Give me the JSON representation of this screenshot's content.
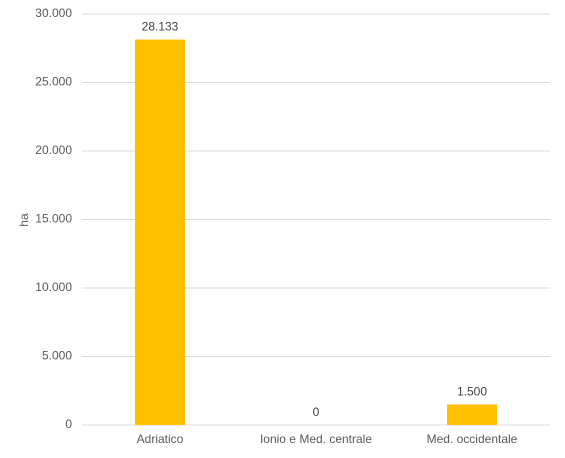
{
  "chart_data": {
    "type": "bar",
    "y_label": "ha",
    "categories": [
      "Adriatico",
      "Ionio e Med. centrale",
      "Med. occidentale"
    ],
    "values": [
      28133,
      0,
      1500
    ],
    "value_labels": [
      "28.133",
      "0",
      "1.500"
    ],
    "color": "#ffc000",
    "ylim": [
      0,
      30000
    ],
    "yticks": [
      0,
      {
        "value": 5000,
        "label": "5.000"
      },
      {
        "value": 10000,
        "label": "10.000"
      },
      {
        "value": 15000,
        "label": "15.000"
      },
      {
        "value": 20000,
        "label": "20.000"
      },
      {
        "value": 25000,
        "label": "25.000"
      },
      {
        "value": 30000,
        "label": "30.000"
      }
    ],
    "grid": true
  }
}
